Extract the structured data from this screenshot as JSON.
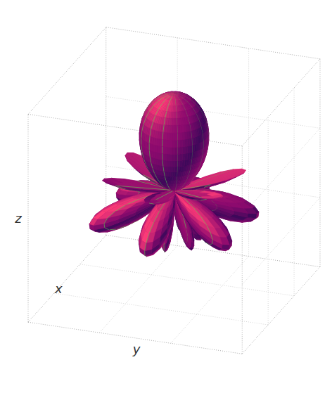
{
  "chart_data": {
    "type": "surface3d",
    "xlabel": "x",
    "ylabel": "y",
    "zlabel": "z",
    "tick_labels": false,
    "grid": true
  }
}
